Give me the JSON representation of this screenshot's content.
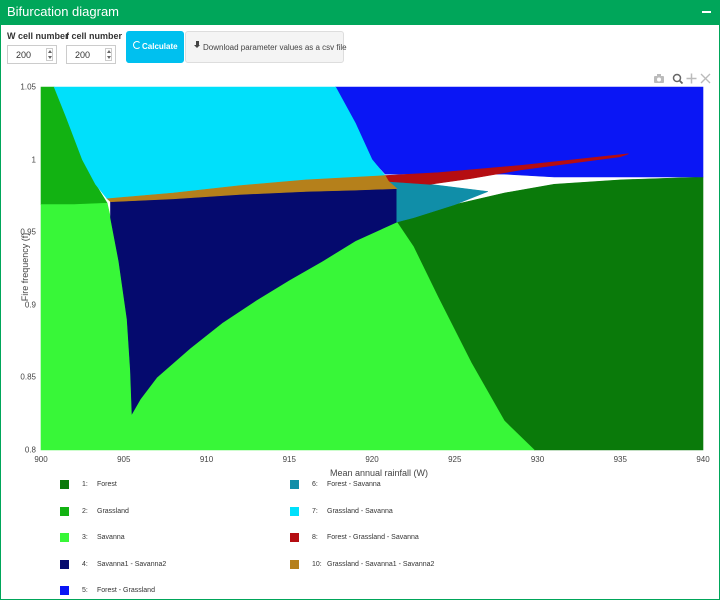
{
  "header": {
    "title": "Bifurcation diagram"
  },
  "controls": {
    "w_label": "W cell number",
    "w_value": "200",
    "f_label": "f cell number",
    "f_value": "200",
    "calc_label": "Calculate",
    "download_label": "Download parameter values as a csv file"
  },
  "modebar": {
    "icons": [
      "camera-icon",
      "zoom-icon",
      "pan-icon",
      "autoscale-icon"
    ]
  },
  "chart_data": {
    "type": "heatmap",
    "title": "",
    "xlabel": "Mean annual rainfall (W)",
    "ylabel": "Fire frequency (f)",
    "xlim": [
      900,
      940
    ],
    "ylim": [
      0.8,
      1.05
    ],
    "x_ticks": [
      "900",
      "905",
      "910",
      "915",
      "920",
      "925",
      "930",
      "935",
      "940"
    ],
    "y_ticks": [
      "0.8",
      "0.85",
      "0.9",
      "0.95",
      "1",
      "1.05"
    ],
    "regions": [
      {
        "id": 1,
        "name": "Forest",
        "color": "#0a7a0a",
        "polygon": [
          [
            921.5,
            0.957
          ],
          [
            922.5,
            0.96
          ],
          [
            925,
            0.969
          ],
          [
            928,
            0.977
          ],
          [
            931,
            0.983
          ],
          [
            935,
            0.986
          ],
          [
            940,
            0.988
          ],
          [
            940,
            0.8
          ],
          [
            929.8,
            0.8
          ],
          [
            928,
            0.82
          ],
          [
            926,
            0.86
          ],
          [
            924,
            0.905
          ],
          [
            922.5,
            0.94
          ]
        ]
      },
      {
        "id": 2,
        "name": "Grassland",
        "color": "#12b212",
        "polygon": [
          [
            900,
            1.05
          ],
          [
            900.8,
            1.05
          ],
          [
            901.5,
            1.03
          ],
          [
            902.5,
            1.0
          ],
          [
            903.3,
            0.983
          ],
          [
            904,
            0.97
          ],
          [
            902,
            0.969
          ],
          [
            900,
            0.969
          ]
        ]
      },
      {
        "id": 3,
        "name": "Savanna",
        "color": "#38f738",
        "polygon": [
          [
            900,
            0.969
          ],
          [
            902,
            0.969
          ],
          [
            904,
            0.97
          ],
          [
            904.2,
            0.96
          ],
          [
            904.7,
            0.93
          ],
          [
            905.2,
            0.89
          ],
          [
            905.4,
            0.855
          ],
          [
            905.5,
            0.825
          ],
          [
            906,
            0.835
          ],
          [
            907,
            0.85
          ],
          [
            909,
            0.87
          ],
          [
            911,
            0.888
          ],
          [
            913,
            0.903
          ],
          [
            915,
            0.917
          ],
          [
            917,
            0.93
          ],
          [
            919,
            0.944
          ],
          [
            921.5,
            0.957
          ],
          [
            922.5,
            0.94
          ],
          [
            924,
            0.905
          ],
          [
            926,
            0.86
          ],
          [
            928,
            0.82
          ],
          [
            929.8,
            0.8
          ],
          [
            900,
            0.8
          ]
        ]
      },
      {
        "id": 4,
        "name": "Savanna1 - Savanna2",
        "color": "#050a6e",
        "polygon": [
          [
            904.2,
            0.971
          ],
          [
            908,
            0.973
          ],
          [
            912,
            0.976
          ],
          [
            916,
            0.978
          ],
          [
            919,
            0.979
          ],
          [
            921.5,
            0.98
          ],
          [
            921.5,
            0.957
          ],
          [
            919,
            0.944
          ],
          [
            917,
            0.93
          ],
          [
            915,
            0.917
          ],
          [
            913,
            0.903
          ],
          [
            911,
            0.888
          ],
          [
            909,
            0.87
          ],
          [
            907,
            0.85
          ],
          [
            906,
            0.835
          ],
          [
            905.5,
            0.825
          ],
          [
            905.4,
            0.855
          ],
          [
            905.2,
            0.89
          ],
          [
            904.7,
            0.93
          ],
          [
            904.2,
            0.96
          ]
        ]
      },
      {
        "id": 5,
        "name": "Forest - Grassland",
        "color": "#0a16f5",
        "polygon": [
          [
            917.8,
            1.05
          ],
          [
            940,
            1.05
          ],
          [
            940,
            0.988
          ],
          [
            931,
            0.988
          ],
          [
            928,
            0.99
          ],
          [
            925,
            0.99
          ],
          [
            922,
            0.99
          ],
          [
            920.8,
            0.99
          ],
          [
            920,
            1.0
          ],
          [
            919,
            1.025
          ]
        ]
      },
      {
        "id": 6,
        "name": "Forest - Savanna",
        "color": "#108ea8",
        "polygon": [
          [
            921,
            0.985
          ],
          [
            923.5,
            0.983
          ],
          [
            927,
            0.978
          ],
          [
            925,
            0.969
          ],
          [
            922.5,
            0.96
          ],
          [
            921.5,
            0.957
          ],
          [
            921.5,
            0.98
          ]
        ]
      },
      {
        "id": 7,
        "name": "Grassland - Savanna",
        "color": "#00e0fb",
        "polygon": [
          [
            900.8,
            1.05
          ],
          [
            917.8,
            1.05
          ],
          [
            919,
            1.025
          ],
          [
            920,
            1.0
          ],
          [
            920.8,
            0.989
          ],
          [
            916,
            0.986
          ],
          [
            912,
            0.982
          ],
          [
            908,
            0.977
          ],
          [
            904,
            0.973
          ],
          [
            903.3,
            0.983
          ],
          [
            902.5,
            1.0
          ],
          [
            901.5,
            1.03
          ]
        ]
      },
      {
        "id": 8,
        "name": "Forest - Grassland - Savanna",
        "color": "#b50d12",
        "polygon": [
          [
            920.8,
            0.989
          ],
          [
            924,
            0.991
          ],
          [
            929,
            0.996
          ],
          [
            935.5,
            1.004
          ],
          [
            935,
            1.002
          ],
          [
            929,
            0.993
          ],
          [
            926,
            0.987
          ],
          [
            923.5,
            0.983
          ],
          [
            921,
            0.985
          ]
        ]
      },
      {
        "id": 10,
        "name": "Grassland - Savanna1 - Savanna2",
        "color": "#b5801b",
        "polygon": [
          [
            904,
            0.973
          ],
          [
            908,
            0.977
          ],
          [
            912,
            0.982
          ],
          [
            916,
            0.986
          ],
          [
            920.8,
            0.989
          ],
          [
            921,
            0.985
          ],
          [
            921.5,
            0.98
          ],
          [
            919,
            0.979
          ],
          [
            916,
            0.978
          ],
          [
            912,
            0.976
          ],
          [
            908,
            0.973
          ],
          [
            904.2,
            0.971
          ]
        ]
      }
    ],
    "legend": [
      {
        "num": "1:",
        "label": "Forest",
        "color": "#0a7a0a",
        "col": 0
      },
      {
        "num": "2:",
        "label": "Grassland",
        "color": "#12b212",
        "col": 0
      },
      {
        "num": "3:",
        "label": "Savanna",
        "color": "#38f738",
        "col": 0
      },
      {
        "num": "4:",
        "label": "Savanna1 - Savanna2",
        "color": "#050a6e",
        "col": 0
      },
      {
        "num": "5:",
        "label": "Forest - Grassland",
        "color": "#0a16f5",
        "col": 0
      },
      {
        "num": "6:",
        "label": "Forest - Savanna",
        "color": "#108ea8",
        "col": 1
      },
      {
        "num": "7:",
        "label": "Grassland - Savanna",
        "color": "#00e0fb",
        "col": 1
      },
      {
        "num": "8:",
        "label": "Forest - Grassland - Savanna",
        "color": "#b50d12",
        "col": 1
      },
      {
        "num": "10:",
        "label": "Grassland - Savanna1 - Savanna2",
        "color": "#b5801b",
        "col": 1
      }
    ]
  }
}
